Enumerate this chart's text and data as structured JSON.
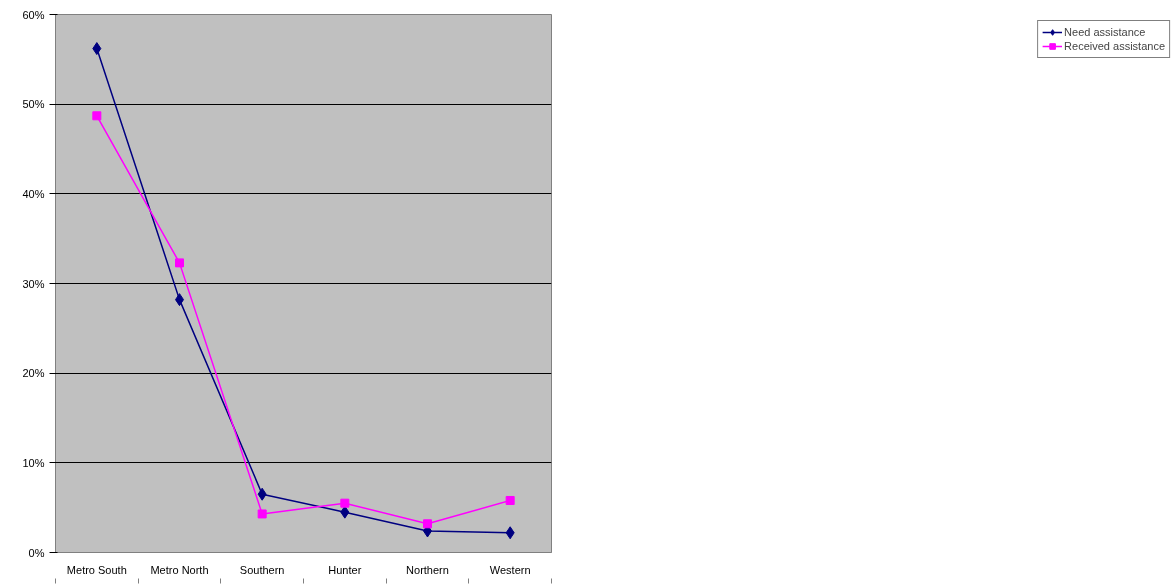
{
  "chart_data": {
    "type": "line",
    "categories": [
      "Metro South",
      "Metro North",
      "Southern",
      "Hunter",
      "Northern",
      "Western"
    ],
    "series": [
      {
        "name": "Need assistance",
        "color": "#000080",
        "marker": "diamond",
        "values": [
          56.2,
          28.2,
          6.5,
          4.5,
          2.4,
          2.2
        ]
      },
      {
        "name": "Received assistance",
        "color": "#ff00ff",
        "marker": "square",
        "values": [
          48.7,
          32.3,
          4.3,
          5.5,
          3.2,
          5.8
        ]
      }
    ],
    "ylim": [
      0,
      60
    ],
    "yticks": [
      {
        "value": 0,
        "label": "0%"
      },
      {
        "value": 10,
        "label": "10%"
      },
      {
        "value": 20,
        "label": "20%"
      },
      {
        "value": 30,
        "label": "30%"
      },
      {
        "value": 40,
        "label": "40%"
      },
      {
        "value": 50,
        "label": "50%"
      },
      {
        "value": 60,
        "label": "60%"
      }
    ],
    "grid": "y",
    "legend": "right",
    "line_style": "solid"
  }
}
